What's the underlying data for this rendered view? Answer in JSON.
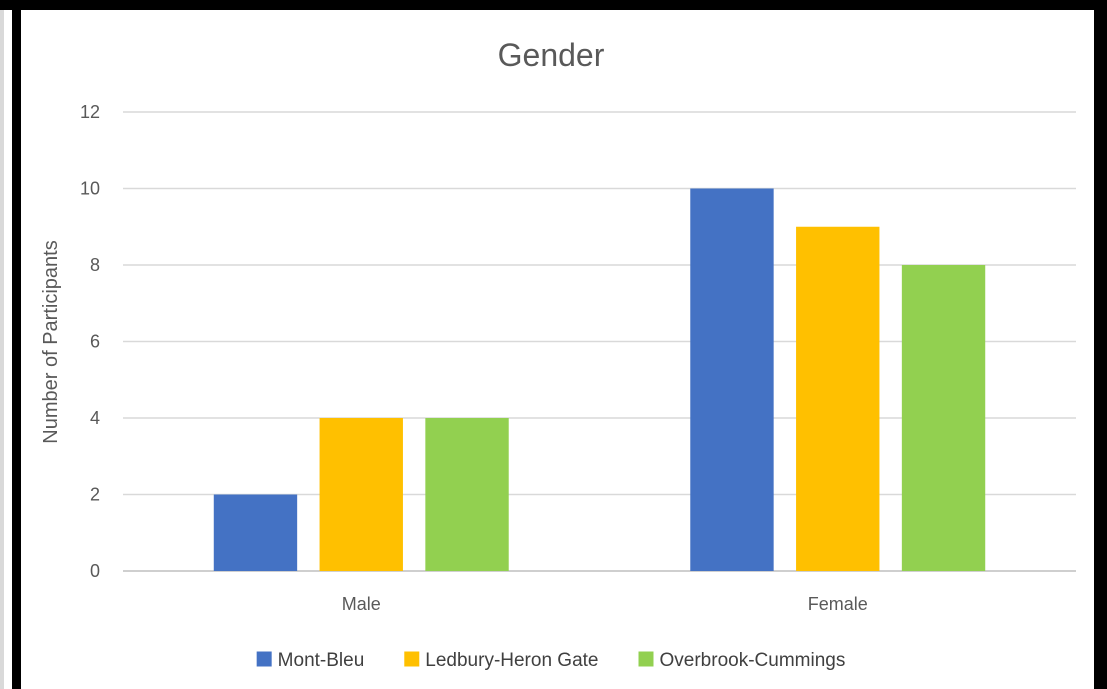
{
  "chart_data": {
    "type": "bar",
    "title": "Gender",
    "xlabel": "",
    "ylabel": "Number of  Participants",
    "categories": [
      "Male",
      "Female"
    ],
    "series": [
      {
        "name": "Mont-Bleu",
        "values": [
          2,
          10
        ],
        "color": "#4472c4"
      },
      {
        "name": "Ledbury-Heron Gate",
        "values": [
          4,
          9
        ],
        "color": "#ffc000"
      },
      {
        "name": "Overbrook-Cummings",
        "values": [
          4,
          8
        ],
        "color": "#92d050"
      }
    ],
    "ylim": [
      0,
      12
    ],
    "yticks": [
      0,
      2,
      4,
      6,
      8,
      10,
      12
    ],
    "grid": true,
    "legend": "bottom"
  }
}
